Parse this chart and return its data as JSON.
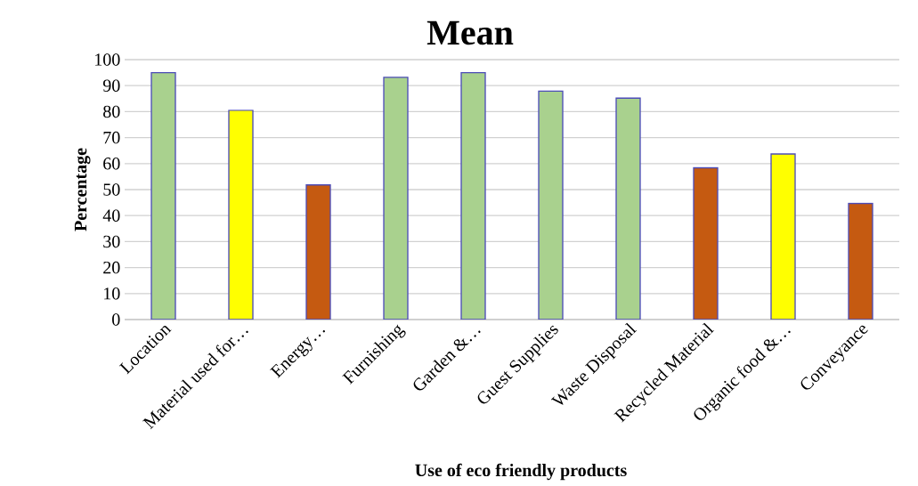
{
  "chart_data": {
    "type": "bar",
    "title": "Mean",
    "xlabel": "Use of eco friendly products",
    "ylabel": "Percentage",
    "categories": [
      "Location",
      "Material used for…",
      "Energy…",
      "Furnishing",
      "Garden &…",
      "Guest Supplies",
      "Waste Disposal",
      "Recycled Material",
      "Organic food &…",
      "Conveyance"
    ],
    "values": [
      95,
      80.5,
      51.8,
      93.2,
      95,
      87.9,
      85.2,
      58.4,
      63.7,
      44.7
    ],
    "colors": [
      "#a9d18e",
      "#ffff00",
      "#c55a11",
      "#a9d18e",
      "#a9d18e",
      "#a9d18e",
      "#a9d18e",
      "#c55a11",
      "#ffff00",
      "#c55a11"
    ],
    "ylim": [
      0,
      100
    ],
    "yticks": [
      0,
      10,
      20,
      30,
      40,
      50,
      60,
      70,
      80,
      90,
      100
    ],
    "grid": "y"
  }
}
